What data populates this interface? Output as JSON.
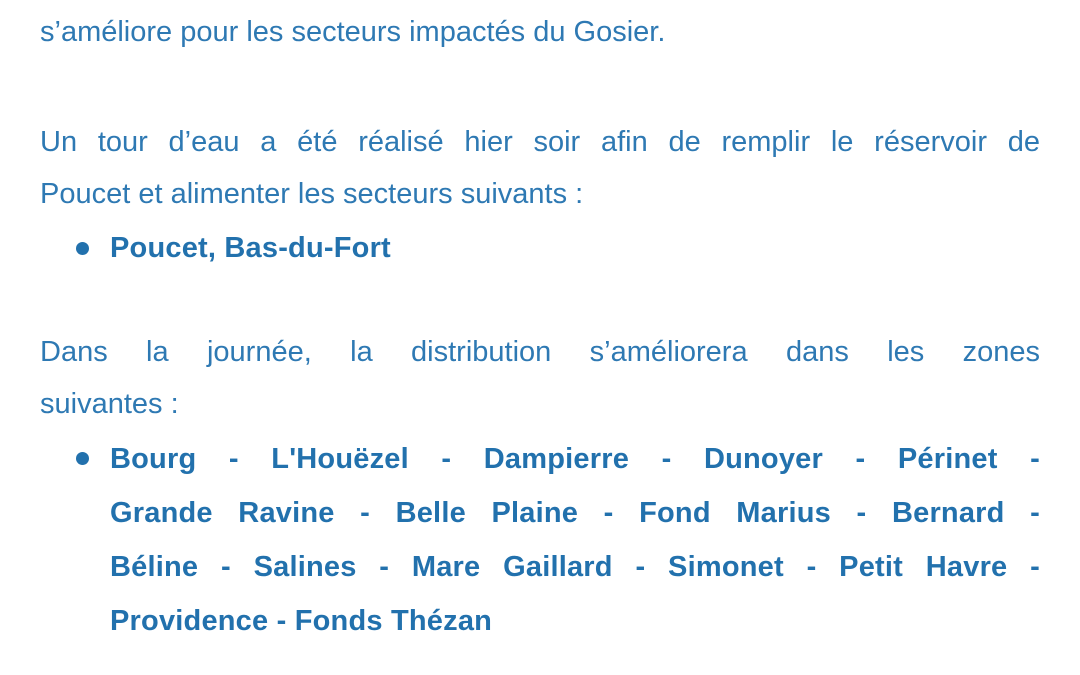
{
  "colors": {
    "regular_text": "#2e79b3",
    "bold_text": "#2271ad",
    "background": "#ffffff"
  },
  "document": {
    "intro": {
      "line1": "s’améliore pour les secteurs impactés du Gosier."
    },
    "tour_eau": {
      "line1": "Un tour d’eau a été réalisé hier soir afin de remplir le réservoir de",
      "line2": "Poucet et alimenter les secteurs suivants :",
      "sectors_item": "Poucet, Bas-du-Fort"
    },
    "distribution": {
      "line1": "Dans la journée, la distribution s’améliorera dans les zones",
      "line2": "suivantes :",
      "zones_line1": "Bourg - L'Houëzel - Dampierre - Dunoyer - Périnet -",
      "zones_line2": "Grande Ravine - Belle Plaine - Fond Marius - Bernard -",
      "zones_line3": "Béline - Salines - Mare Gaillard - Simonet - Petit Havre -",
      "zones_line4": "Providence - Fonds Thézan"
    }
  }
}
